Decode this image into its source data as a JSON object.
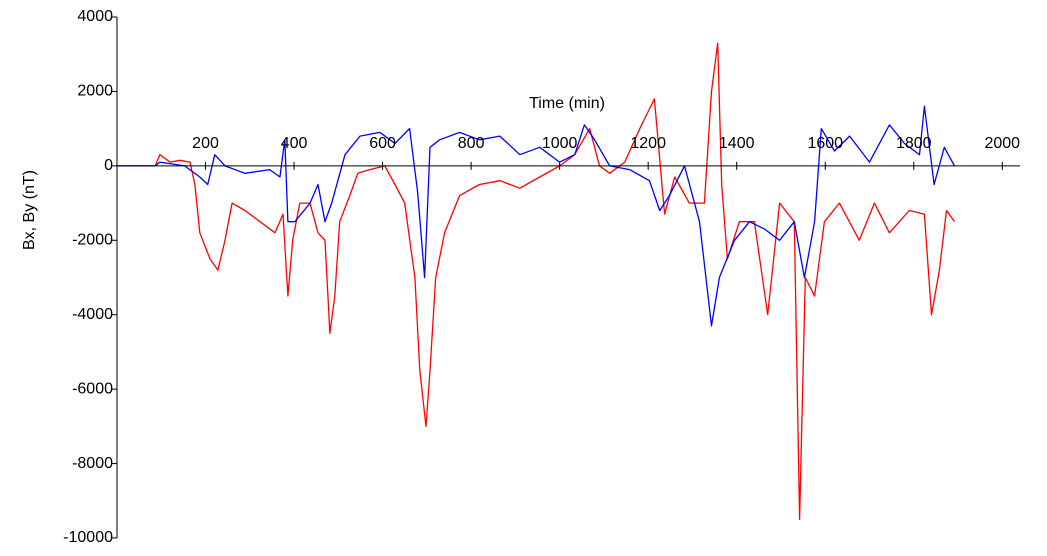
{
  "chart_data": {
    "type": "line",
    "x_label": "Time (min)",
    "y_label": "Bx, By (nT)",
    "xlim": [
      0,
      2040
    ],
    "ylim": [
      -10000,
      4000
    ],
    "xticks": [
      200,
      400,
      600,
      800,
      1000,
      1200,
      1400,
      1600,
      1800,
      2000
    ],
    "yticks": [
      4000,
      2000,
      0,
      -2000,
      -4000,
      -6000,
      -8000,
      -10000
    ],
    "grid": false,
    "series": [
      {
        "color": "#ff0000",
        "x": [
          0,
          86,
          97,
          120,
          142,
          165,
          176,
          187,
          210,
          228,
          244,
          260,
          289,
          323,
          357,
          375,
          386,
          397,
          413,
          436,
          454,
          470,
          481,
          492,
          503,
          526,
          544,
          571,
          605,
          628,
          650,
          673,
          684,
          698,
          707,
          720,
          740,
          774,
          819,
          865,
          910,
          955,
          1000,
          1034,
          1068,
          1090,
          1113,
          1147,
          1181,
          1214,
          1237,
          1260,
          1293,
          1327,
          1343,
          1357,
          1366,
          1379,
          1406,
          1440,
          1470,
          1497,
          1530,
          1542,
          1555,
          1576,
          1598,
          1632,
          1677,
          1711,
          1745,
          1790,
          1824,
          1840,
          1858,
          1874,
          1892
        ],
        "values": [
          0,
          0,
          300,
          100,
          150,
          100,
          -500,
          -1800,
          -2500,
          -2800,
          -2000,
          -1000,
          -1200,
          -1500,
          -1800,
          -1300,
          -3500,
          -2000,
          -1000,
          -1000,
          -1800,
          -2000,
          -4500,
          -3500,
          -1500,
          -800,
          -200,
          -100,
          0,
          -500,
          -1000,
          -3000,
          -5500,
          -7000,
          -5500,
          -3000,
          -1800,
          -800,
          -500,
          -400,
          -600,
          -300,
          0,
          300,
          1000,
          0,
          -200,
          100,
          1000,
          1800,
          -1300,
          -300,
          -1000,
          -1000,
          2000,
          3300,
          -500,
          -2500,
          -1500,
          -1500,
          -4000,
          -1000,
          -1500,
          -9500,
          -3000,
          -3500,
          -1500,
          -1000,
          -2000,
          -1000,
          -1800,
          -1200,
          -1300,
          -4000,
          -2800,
          -1200,
          -1500
        ]
      },
      {
        "color": "#0000ff",
        "x": [
          0,
          86,
          97,
          153,
          187,
          205,
          221,
          244,
          289,
          345,
          368,
          379,
          386,
          402,
          436,
          454,
          470,
          485,
          515,
          549,
          594,
          628,
          661,
          679,
          695,
          707,
          729,
          774,
          819,
          865,
          910,
          955,
          1000,
          1034,
          1056,
          1079,
          1113,
          1158,
          1203,
          1226,
          1248,
          1282,
          1316,
          1343,
          1361,
          1395,
          1429,
          1463,
          1497,
          1530,
          1553,
          1576,
          1591,
          1621,
          1655,
          1700,
          1745,
          1779,
          1813,
          1824,
          1846,
          1869,
          1892
        ],
        "values": [
          0,
          0,
          100,
          0,
          -300,
          -500,
          300,
          0,
          -200,
          -100,
          -300,
          700,
          -1500,
          -1500,
          -1000,
          -500,
          -1500,
          -1000,
          300,
          800,
          900,
          600,
          1000,
          -700,
          -3000,
          500,
          700,
          900,
          700,
          800,
          300,
          500,
          100,
          300,
          1100,
          700,
          0,
          -100,
          -400,
          -1200,
          -800,
          0,
          -1500,
          -4300,
          -3000,
          -2000,
          -1500,
          -1700,
          -2000,
          -1500,
          -3000,
          -1500,
          1000,
          400,
          800,
          100,
          1100,
          600,
          300,
          1600,
          -500,
          500,
          0
        ]
      }
    ]
  }
}
